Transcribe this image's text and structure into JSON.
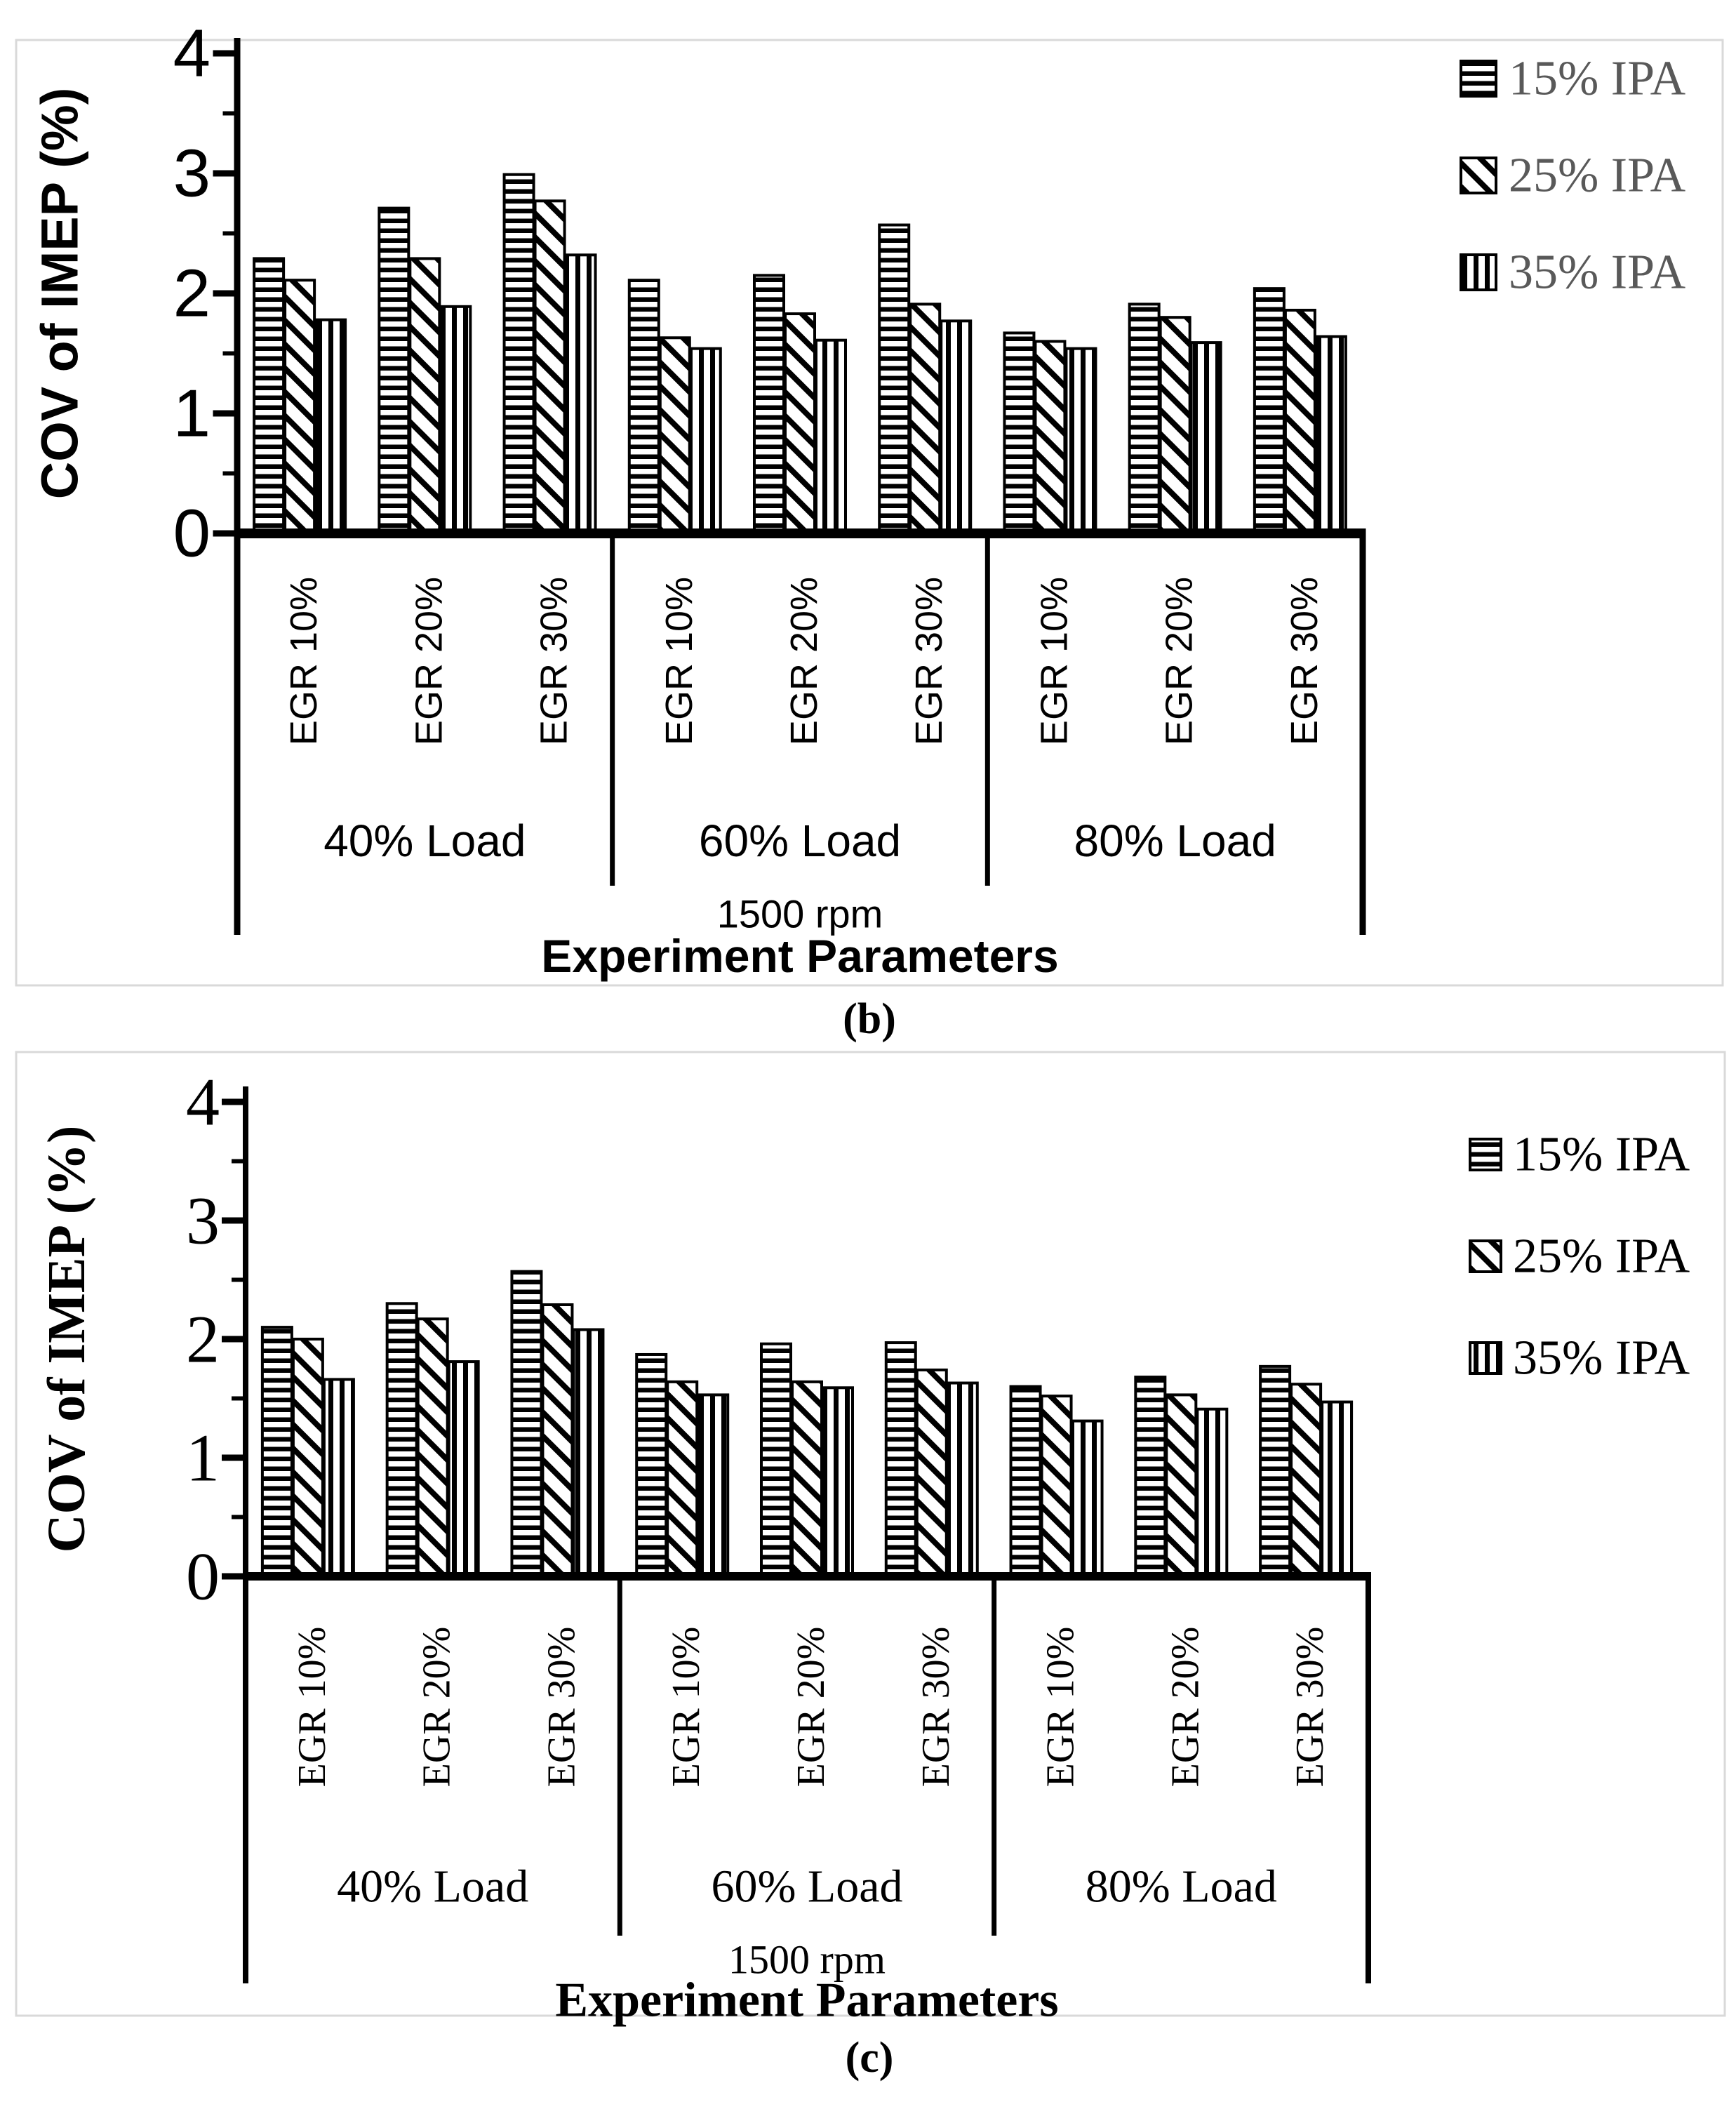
{
  "colors": {
    "ink": "#000000",
    "background": "#ffffff",
    "panel_border": "#d9d9d9",
    "legend_text_b": "#595959",
    "legend_text_c": "#000000"
  },
  "figure": {
    "panel_b_caption": "(b)",
    "panel_c_caption": "(c)"
  },
  "chart_data": [
    {
      "type": "bar",
      "panel": "b",
      "title": "",
      "ylabel": "COV of IMEP (%)",
      "xlabel": "Experiment Parameters",
      "ylim": [
        0,
        4
      ],
      "yticks": [
        0,
        1,
        2,
        3,
        4
      ],
      "grid": false,
      "legend_position": "outside-upper-right",
      "legend": [
        "15% IPA",
        "25% IPA",
        "35% IPA"
      ],
      "legend_patterns": [
        "horizontal-stripes",
        "diagonal-stripes",
        "vertical-stripes"
      ],
      "group_labels": [
        "EGR 10%",
        "EGR 20%",
        "EGR 30%",
        "EGR 10%",
        "EGR 20%",
        "EGR 30%",
        "EGR 10%",
        "EGR 20%",
        "EGR 30%"
      ],
      "load_labels": [
        "40% Load",
        "60% Load",
        "80% Load"
      ],
      "rpm_label": "1500 rpm",
      "series": [
        {
          "name": "15% IPA",
          "values": [
            2.29,
            2.71,
            2.99,
            2.11,
            2.15,
            2.57,
            1.67,
            1.91,
            2.04
          ]
        },
        {
          "name": "25% IPA",
          "values": [
            2.11,
            2.29,
            2.77,
            1.63,
            1.83,
            1.91,
            1.6,
            1.8,
            1.86
          ]
        },
        {
          "name": "35% IPA",
          "values": [
            1.78,
            1.89,
            2.32,
            1.54,
            1.61,
            1.77,
            1.54,
            1.59,
            1.64
          ]
        }
      ]
    },
    {
      "type": "bar",
      "panel": "c",
      "title": "",
      "ylabel": "COV of IMEP (%)",
      "xlabel": "Experiment Parameters",
      "ylim": [
        0,
        4
      ],
      "yticks": [
        0,
        1,
        2,
        3,
        4
      ],
      "grid": false,
      "legend_position": "outside-upper-right",
      "legend": [
        "15% IPA",
        "25% IPA",
        "35% IPA"
      ],
      "legend_patterns": [
        "horizontal-stripes",
        "diagonal-stripes",
        "vertical-stripes"
      ],
      "group_labels": [
        "EGR 10%",
        "EGR 20%",
        "EGR 30%",
        "EGR 10%",
        "EGR 20%",
        "EGR 30%",
        "EGR 10%",
        "EGR 20%",
        "EGR 30%"
      ],
      "load_labels": [
        "40% Load",
        "60% Load",
        "80% Load"
      ],
      "rpm_label": "1500 rpm",
      "series": [
        {
          "name": "15% IPA",
          "values": [
            2.1,
            2.3,
            2.57,
            1.87,
            1.96,
            1.97,
            1.6,
            1.68,
            1.77
          ]
        },
        {
          "name": "25% IPA",
          "values": [
            2.0,
            2.17,
            2.29,
            1.64,
            1.64,
            1.74,
            1.52,
            1.53,
            1.62
          ]
        },
        {
          "name": "35% IPA",
          "values": [
            1.66,
            1.81,
            2.08,
            1.53,
            1.59,
            1.63,
            1.31,
            1.41,
            1.47
          ]
        }
      ]
    }
  ]
}
